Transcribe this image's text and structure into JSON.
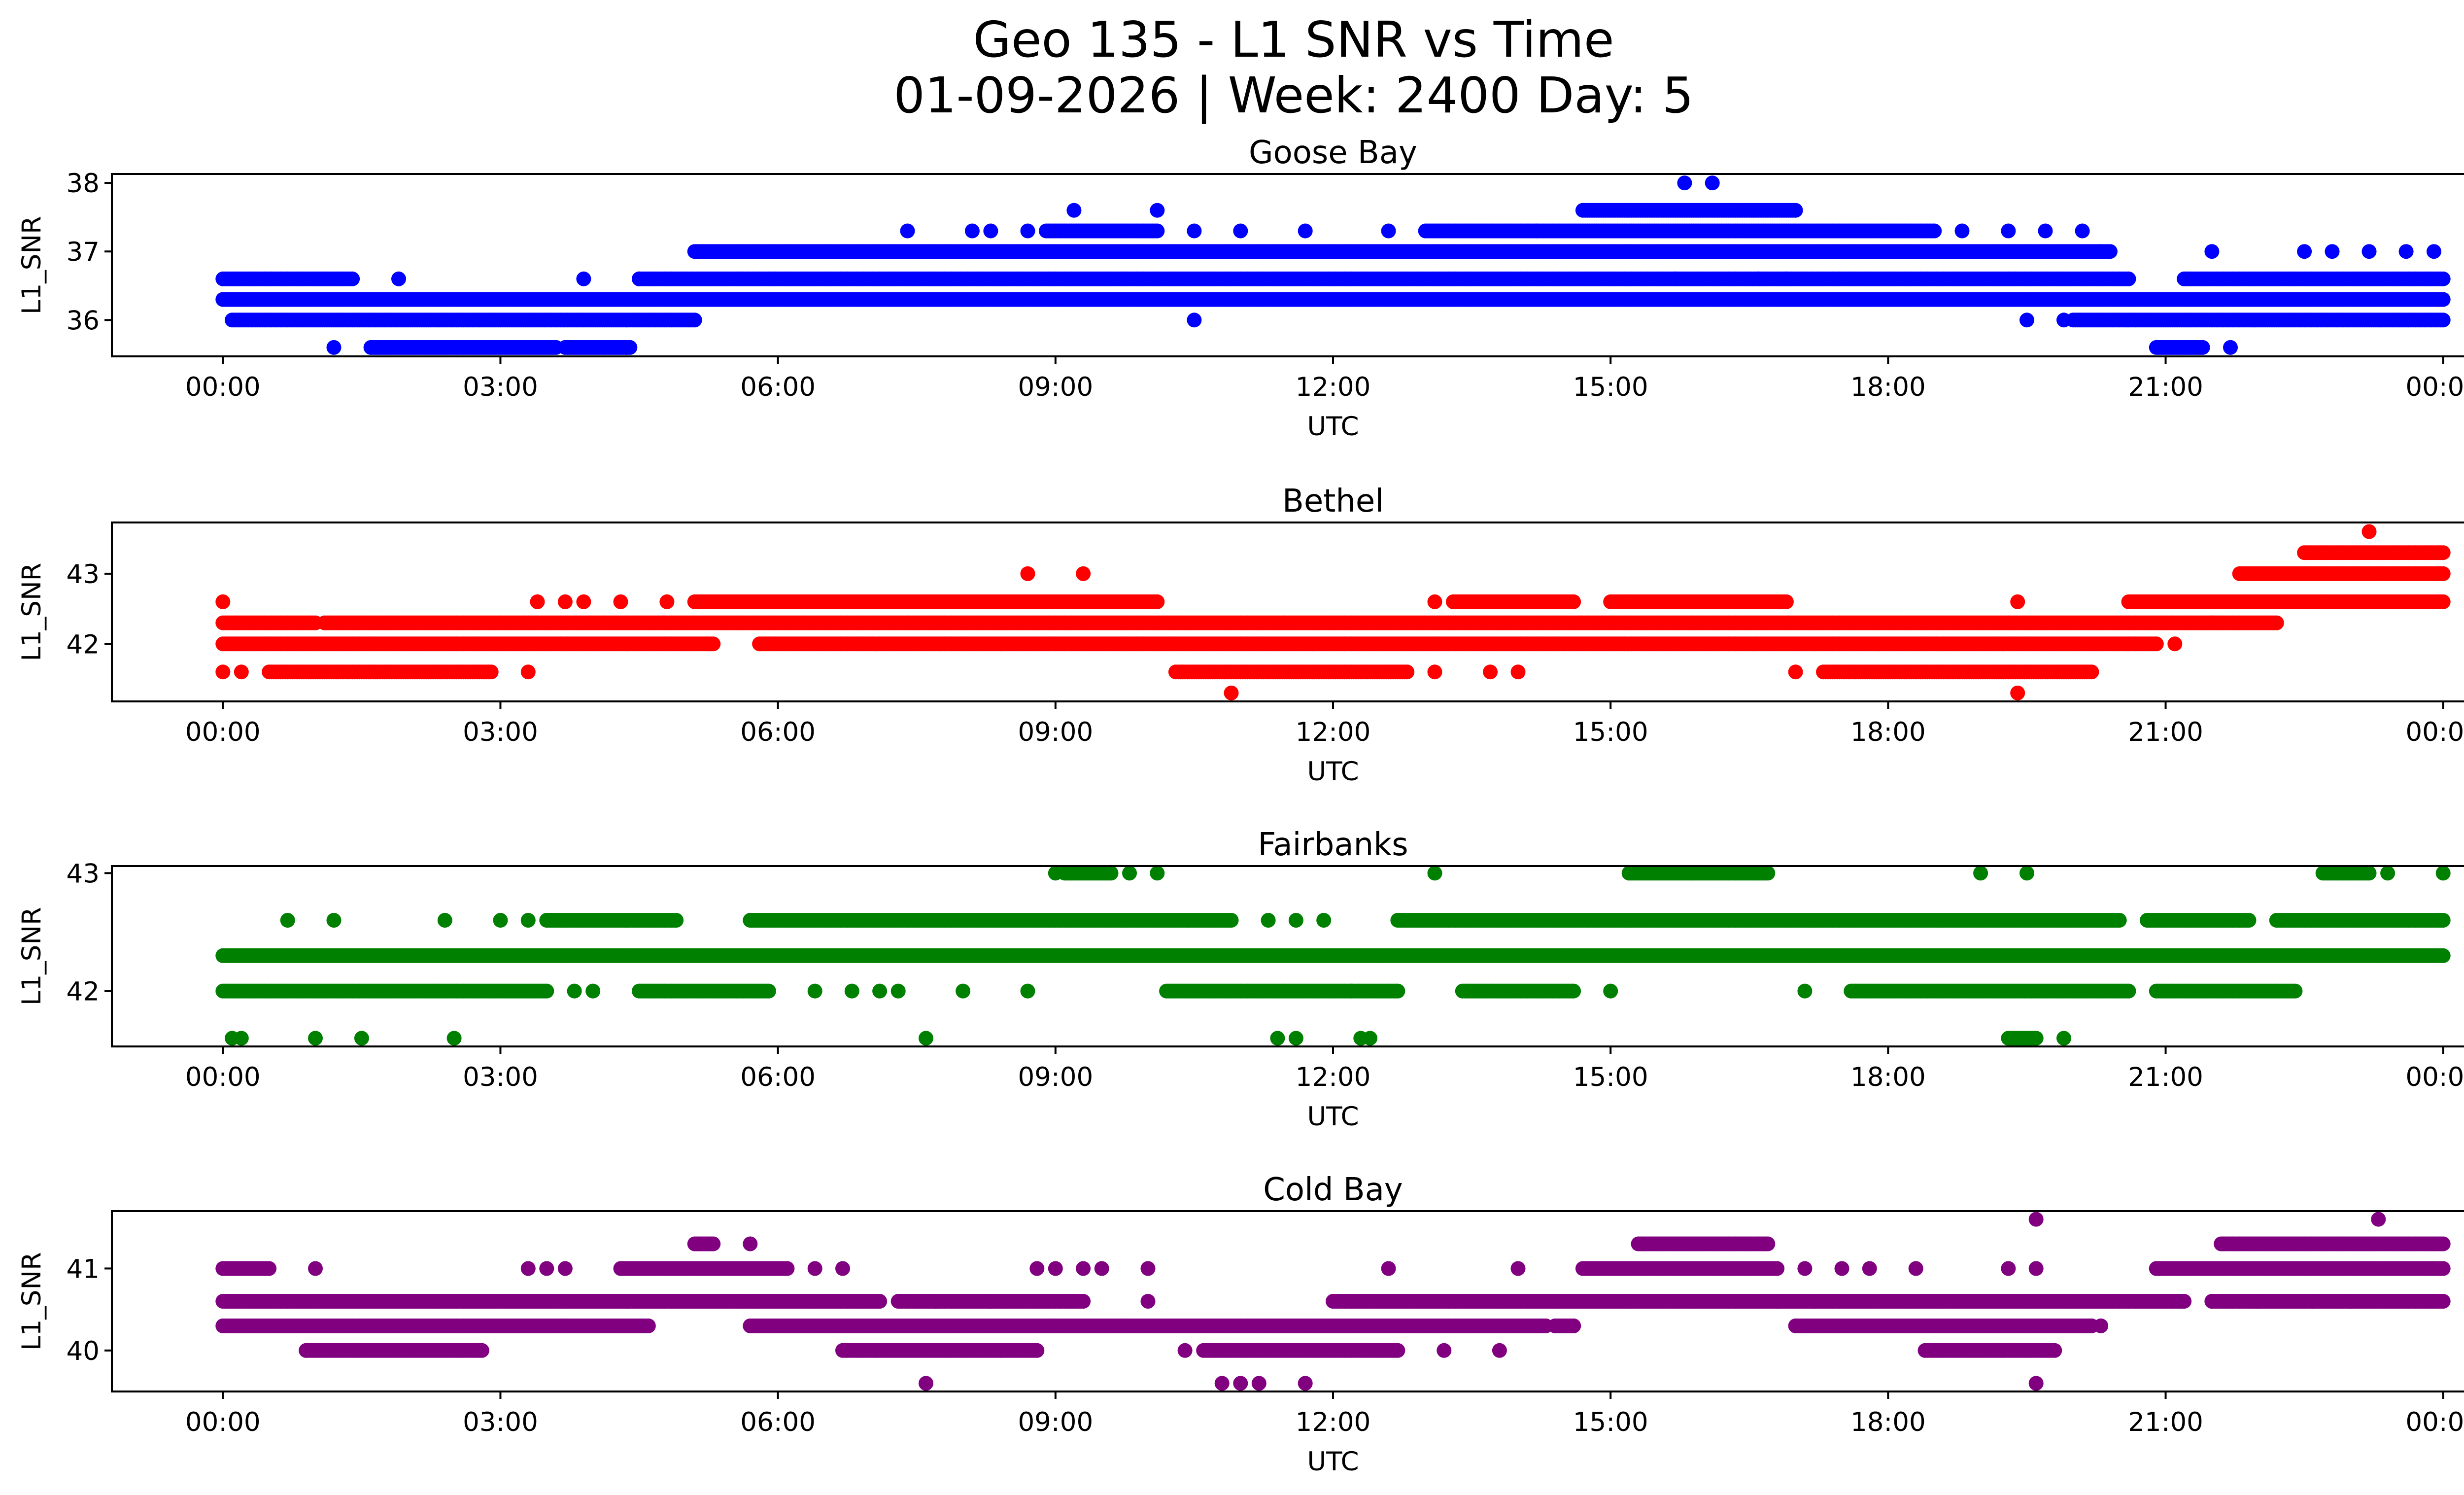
{
  "chart_data": {
    "type": "scatter",
    "title": "Geo 135 - L1 SNR vs Time",
    "subtitle": "01-09-2026 | Week: 2400 Day: 5",
    "x_unit": "hours UTC",
    "x_ticks": [
      0,
      3,
      6,
      9,
      12,
      15,
      18,
      21,
      24
    ],
    "x_tick_labels": [
      "00:00",
      "03:00",
      "06:00",
      "09:00",
      "12:00",
      "15:00",
      "18:00",
      "21:00",
      "00:00"
    ],
    "xlim": [
      -1.2,
      25.2
    ],
    "grid": false,
    "legend": "none",
    "panels": [
      {
        "name": "Goose Bay",
        "color": "#0000ff",
        "xlabel": "UTC",
        "ylabel": "L1_SNR",
        "ylim": [
          35.47,
          38.13
        ],
        "y_ticks": [
          36,
          37,
          38
        ],
        "runs": [
          {
            "y": 36.6,
            "x": [
              [
                0.0,
                1.4
              ],
              [
                4.5,
                20.6
              ],
              [
                21.2,
                24.0
              ]
            ]
          },
          {
            "y": 36.3,
            "x": [
              [
                0.0,
                24.0
              ]
            ]
          },
          {
            "y": 36.0,
            "x": [
              [
                0.1,
                5.1
              ],
              [
                20.0,
                24.0
              ]
            ]
          },
          {
            "y": 35.6,
            "x": [
              [
                1.6,
                3.6
              ],
              [
                3.7,
                4.4
              ],
              [
                20.9,
                21.4
              ]
            ]
          },
          {
            "y": 37.0,
            "x": [
              [
                5.1,
                20.4
              ]
            ]
          },
          {
            "y": 37.3,
            "x": [
              [
                8.9,
                10.1
              ],
              [
                13.0,
                14.2
              ],
              [
                14.2,
                18.5
              ]
            ]
          },
          {
            "y": 37.6,
            "x": [
              [
                14.7,
                17.0
              ]
            ]
          }
        ],
        "points": [
          {
            "x": 1.2,
            "y": 35.6
          },
          {
            "x": 1.9,
            "y": 36.6
          },
          {
            "x": 3.9,
            "y": 36.6
          },
          {
            "x": 4.5,
            "y": 36.6
          },
          {
            "x": 7.4,
            "y": 37.3
          },
          {
            "x": 8.1,
            "y": 37.3
          },
          {
            "x": 8.3,
            "y": 37.3
          },
          {
            "x": 8.7,
            "y": 37.3
          },
          {
            "x": 9.2,
            "y": 37.6
          },
          {
            "x": 10.1,
            "y": 37.6
          },
          {
            "x": 10.5,
            "y": 37.3
          },
          {
            "x": 11.0,
            "y": 37.3
          },
          {
            "x": 11.7,
            "y": 37.3
          },
          {
            "x": 12.6,
            "y": 37.3
          },
          {
            "x": 10.5,
            "y": 36.0
          },
          {
            "x": 15.8,
            "y": 38.0
          },
          {
            "x": 16.1,
            "y": 38.0
          },
          {
            "x": 15.7,
            "y": 36.6
          },
          {
            "x": 16.6,
            "y": 36.6
          },
          {
            "x": 16.9,
            "y": 36.6
          },
          {
            "x": 18.8,
            "y": 37.3
          },
          {
            "x": 19.3,
            "y": 37.3
          },
          {
            "x": 19.7,
            "y": 37.3
          },
          {
            "x": 20.1,
            "y": 37.3
          },
          {
            "x": 20.3,
            "y": 37.0
          },
          {
            "x": 21.5,
            "y": 37.0
          },
          {
            "x": 22.5,
            "y": 37.0
          },
          {
            "x": 22.8,
            "y": 37.0
          },
          {
            "x": 23.2,
            "y": 37.0
          },
          {
            "x": 23.6,
            "y": 37.0
          },
          {
            "x": 23.9,
            "y": 37.0
          },
          {
            "x": 19.5,
            "y": 36.3
          },
          {
            "x": 19.7,
            "y": 36.3
          },
          {
            "x": 19.5,
            "y": 36.0
          },
          {
            "x": 19.9,
            "y": 36.0
          },
          {
            "x": 21.7,
            "y": 35.6
          },
          {
            "x": 8.0,
            "y": 36.3
          },
          {
            "x": 9.5,
            "y": 36.3
          },
          {
            "x": 10.9,
            "y": 36.3
          },
          {
            "x": 14.3,
            "y": 36.3
          }
        ]
      },
      {
        "name": "Bethel",
        "color": "#ff0000",
        "xlabel": "UTC",
        "ylabel": "L1_SNR",
        "ylim": [
          41.18,
          43.73
        ],
        "y_ticks": [
          42,
          43
        ],
        "runs": [
          {
            "y": 42.3,
            "x": [
              [
                0.0,
                1.0
              ],
              [
                1.1,
                22.2
              ]
            ]
          },
          {
            "y": 42.0,
            "x": [
              [
                0.0,
                5.3
              ],
              [
                5.8,
                20.9
              ]
            ]
          },
          {
            "y": 41.6,
            "x": [
              [
                0.5,
                2.9
              ],
              [
                10.3,
                12.8
              ],
              [
                17.3,
                20.2
              ]
            ]
          },
          {
            "y": 42.6,
            "x": [
              [
                5.1,
                10.1
              ],
              [
                13.3,
                14.6
              ],
              [
                15.0,
                16.9
              ],
              [
                20.6,
                24.0
              ]
            ]
          },
          {
            "y": 43.0,
            "x": [
              [
                21.8,
                24.0
              ]
            ]
          },
          {
            "y": 43.3,
            "x": [
              [
                22.5,
                24.0
              ]
            ]
          }
        ],
        "points": [
          {
            "x": 0.0,
            "y": 42.6
          },
          {
            "x": 3.4,
            "y": 42.6
          },
          {
            "x": 3.7,
            "y": 42.6
          },
          {
            "x": 3.9,
            "y": 42.6
          },
          {
            "x": 4.3,
            "y": 42.6
          },
          {
            "x": 4.8,
            "y": 42.6
          },
          {
            "x": 0.0,
            "y": 41.6
          },
          {
            "x": 0.2,
            "y": 41.6
          },
          {
            "x": 3.3,
            "y": 41.6
          },
          {
            "x": 8.7,
            "y": 43.0
          },
          {
            "x": 9.3,
            "y": 43.0
          },
          {
            "x": 10.9,
            "y": 41.3
          },
          {
            "x": 13.1,
            "y": 42.6
          },
          {
            "x": 13.1,
            "y": 41.6
          },
          {
            "x": 13.7,
            "y": 41.6
          },
          {
            "x": 14.0,
            "y": 41.6
          },
          {
            "x": 17.0,
            "y": 41.6
          },
          {
            "x": 19.4,
            "y": 42.6
          },
          {
            "x": 19.4,
            "y": 41.3
          },
          {
            "x": 21.1,
            "y": 42.0
          },
          {
            "x": 23.2,
            "y": 43.6
          },
          {
            "x": 21.5,
            "y": 42.3
          },
          {
            "x": 22.7,
            "y": 42.6
          }
        ]
      },
      {
        "name": "Fairbanks",
        "color": "#008000",
        "xlabel": "UTC",
        "ylabel": "L1_SNR",
        "ylim": [
          41.53,
          43.06
        ],
        "y_ticks": [
          42,
          43
        ],
        "runs": [
          {
            "y": 42.3,
            "x": [
              [
                0.0,
                24.0
              ]
            ]
          },
          {
            "y": 42.0,
            "x": [
              [
                0.0,
                3.5
              ],
              [
                4.5,
                5.9
              ],
              [
                10.2,
                12.7
              ],
              [
                13.4,
                14.6
              ],
              [
                17.6,
                20.6
              ],
              [
                20.9,
                22.4
              ]
            ]
          },
          {
            "y": 42.6,
            "x": [
              [
                3.5,
                4.9
              ],
              [
                5.7,
                10.9
              ],
              [
                12.7,
                20.5
              ],
              [
                20.8,
                21.9
              ],
              [
                22.2,
                24.0
              ]
            ]
          },
          {
            "y": 43.0,
            "x": [
              [
                9.1,
                9.6
              ],
              [
                15.2,
                16.7
              ],
              [
                22.7,
                23.2
              ]
            ]
          },
          {
            "y": 41.6,
            "x": [
              [
                19.3,
                19.6
              ]
            ]
          }
        ],
        "points": [
          {
            "x": 0.2,
            "y": 41.6
          },
          {
            "x": 0.1,
            "y": 41.6
          },
          {
            "x": 1.0,
            "y": 41.6
          },
          {
            "x": 1.5,
            "y": 41.6
          },
          {
            "x": 2.5,
            "y": 41.6
          },
          {
            "x": 0.7,
            "y": 42.6
          },
          {
            "x": 1.2,
            "y": 42.6
          },
          {
            "x": 2.4,
            "y": 42.6
          },
          {
            "x": 3.0,
            "y": 42.6
          },
          {
            "x": 3.3,
            "y": 42.6
          },
          {
            "x": 3.8,
            "y": 42.0
          },
          {
            "x": 4.0,
            "y": 42.0
          },
          {
            "x": 6.4,
            "y": 42.0
          },
          {
            "x": 6.8,
            "y": 42.0
          },
          {
            "x": 7.1,
            "y": 42.0
          },
          {
            "x": 7.3,
            "y": 42.0
          },
          {
            "x": 8.0,
            "y": 42.0
          },
          {
            "x": 8.7,
            "y": 42.0
          },
          {
            "x": 7.6,
            "y": 41.6
          },
          {
            "x": 9.0,
            "y": 43.0
          },
          {
            "x": 9.8,
            "y": 43.0
          },
          {
            "x": 10.1,
            "y": 43.0
          },
          {
            "x": 11.3,
            "y": 42.6
          },
          {
            "x": 11.6,
            "y": 42.6
          },
          {
            "x": 11.9,
            "y": 42.6
          },
          {
            "x": 11.4,
            "y": 41.6
          },
          {
            "x": 11.6,
            "y": 41.6
          },
          {
            "x": 12.3,
            "y": 41.6
          },
          {
            "x": 12.4,
            "y": 41.6
          },
          {
            "x": 13.1,
            "y": 43.0
          },
          {
            "x": 15.0,
            "y": 42.0
          },
          {
            "x": 17.1,
            "y": 42.0
          },
          {
            "x": 19.0,
            "y": 43.0
          },
          {
            "x": 19.5,
            "y": 43.0
          },
          {
            "x": 19.9,
            "y": 41.6
          },
          {
            "x": 23.4,
            "y": 43.0
          },
          {
            "x": 24.0,
            "y": 43.0
          },
          {
            "x": 12.2,
            "y": 42.0
          }
        ]
      },
      {
        "name": "Cold Bay",
        "color": "#800080",
        "xlabel": "UTC",
        "ylabel": "L1_SNR",
        "ylim": [
          39.5,
          41.7
        ],
        "y_ticks": [
          40,
          41
        ],
        "runs": [
          {
            "y": 40.6,
            "x": [
              [
                0.0,
                7.1
              ],
              [
                7.3,
                9.3
              ],
              [
                12.0,
                21.2
              ],
              [
                21.5,
                24.0
              ]
            ]
          },
          {
            "y": 40.3,
            "x": [
              [
                0.0,
                4.6
              ],
              [
                5.7,
                14.3
              ],
              [
                17.0,
                20.2
              ],
              [
                14.4,
                14.6
              ]
            ]
          },
          {
            "y": 40.0,
            "x": [
              [
                0.9,
                2.8
              ],
              [
                6.7,
                8.8
              ],
              [
                10.6,
                12.7
              ],
              [
                18.4,
                19.8
              ]
            ]
          },
          {
            "y": 41.0,
            "x": [
              [
                0.0,
                0.5
              ],
              [
                4.3,
                6.1
              ],
              [
                14.7,
                16.8
              ],
              [
                20.9,
                24.0
              ]
            ]
          },
          {
            "y": 41.3,
            "x": [
              [
                5.1,
                5.3
              ],
              [
                15.3,
                16.7
              ],
              [
                21.6,
                24.0
              ]
            ]
          }
        ],
        "points": [
          {
            "x": 1.0,
            "y": 41.0
          },
          {
            "x": 3.3,
            "y": 41.0
          },
          {
            "x": 3.5,
            "y": 41.0
          },
          {
            "x": 3.7,
            "y": 41.0
          },
          {
            "x": 6.4,
            "y": 41.0
          },
          {
            "x": 6.7,
            "y": 41.0
          },
          {
            "x": 5.7,
            "y": 41.3
          },
          {
            "x": 0.9,
            "y": 40.0
          },
          {
            "x": 7.6,
            "y": 39.6
          },
          {
            "x": 7.7,
            "y": 40.6
          },
          {
            "x": 8.3,
            "y": 40.6
          },
          {
            "x": 8.8,
            "y": 41.0
          },
          {
            "x": 9.0,
            "y": 41.0
          },
          {
            "x": 9.3,
            "y": 41.0
          },
          {
            "x": 9.5,
            "y": 41.0
          },
          {
            "x": 10.0,
            "y": 41.0
          },
          {
            "x": 10.0,
            "y": 40.6
          },
          {
            "x": 10.4,
            "y": 40.0
          },
          {
            "x": 10.8,
            "y": 39.6
          },
          {
            "x": 11.0,
            "y": 39.6
          },
          {
            "x": 11.2,
            "y": 39.6
          },
          {
            "x": 11.7,
            "y": 39.6
          },
          {
            "x": 12.6,
            "y": 41.0
          },
          {
            "x": 13.2,
            "y": 40.0
          },
          {
            "x": 13.8,
            "y": 40.0
          },
          {
            "x": 14.0,
            "y": 41.0
          },
          {
            "x": 14.6,
            "y": 40.3
          },
          {
            "x": 16.8,
            "y": 40.6
          },
          {
            "x": 17.1,
            "y": 41.0
          },
          {
            "x": 17.5,
            "y": 41.0
          },
          {
            "x": 17.8,
            "y": 41.0
          },
          {
            "x": 18.3,
            "y": 41.0
          },
          {
            "x": 19.3,
            "y": 41.0
          },
          {
            "x": 19.6,
            "y": 41.0
          },
          {
            "x": 19.6,
            "y": 41.6
          },
          {
            "x": 19.6,
            "y": 39.6
          },
          {
            "x": 20.3,
            "y": 40.3
          },
          {
            "x": 21.5,
            "y": 40.6
          },
          {
            "x": 22.0,
            "y": 40.6
          },
          {
            "x": 22.6,
            "y": 40.6
          },
          {
            "x": 23.0,
            "y": 40.6
          },
          {
            "x": 23.3,
            "y": 41.6
          },
          {
            "x": 20.9,
            "y": 41.0
          }
        ]
      }
    ]
  }
}
